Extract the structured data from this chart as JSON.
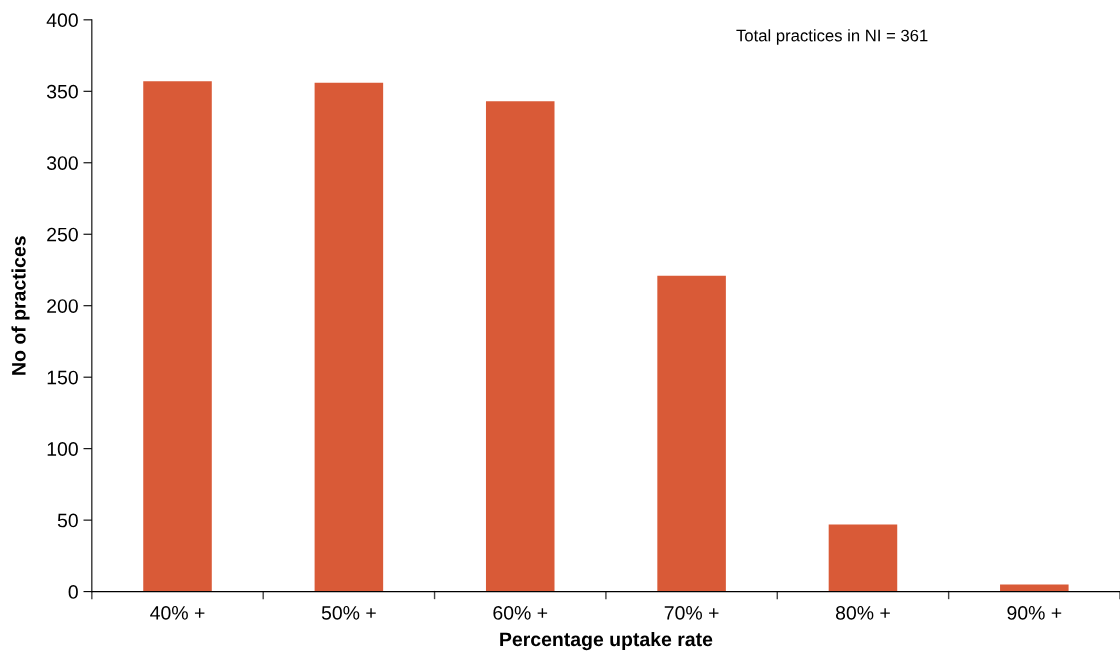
{
  "chart_data": {
    "type": "bar",
    "xlabel": "Percentage uptake rate",
    "ylabel": "No of practices",
    "categories": [
      "40% +",
      "50% +",
      "60% +",
      "70% +",
      "80% +",
      "90% +"
    ],
    "values": [
      357,
      356,
      343,
      221,
      47,
      5
    ],
    "color": "#d95a37",
    "ylim": [
      0,
      400
    ],
    "yticks": [
      0,
      50,
      100,
      150,
      200,
      250,
      300,
      350,
      400
    ],
    "grid": false,
    "annotations": [
      "Total practices in NI = 361"
    ]
  }
}
